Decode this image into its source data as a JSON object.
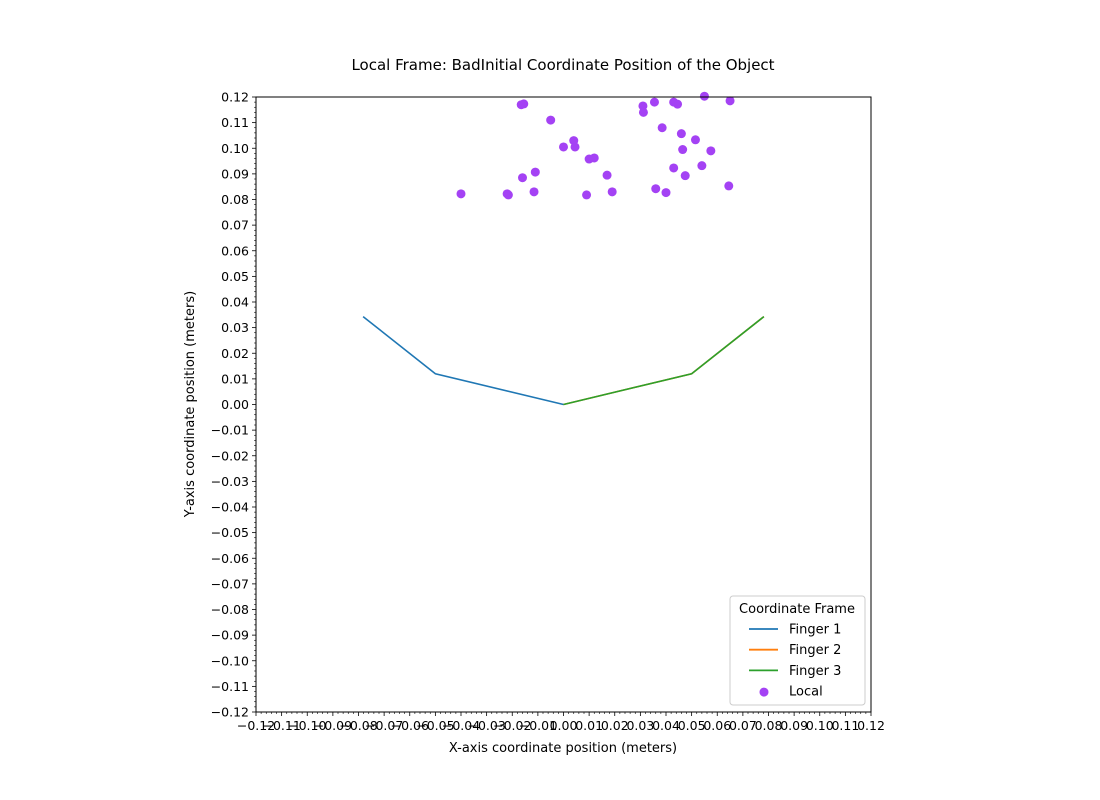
{
  "chart_data": {
    "type": "line+scatter",
    "title": "Local Frame: BadInitial Coordinate Position of the Object",
    "xlabel": "X-axis coordinate position (meters)",
    "ylabel": "Y-axis coordinate position (meters)",
    "xlim": [
      -0.12,
      0.12
    ],
    "ylim": [
      -0.12,
      0.12
    ],
    "major_step": 0.01,
    "minor_step": 0.002,
    "grid": false,
    "legend": {
      "title": "Coordinate Frame",
      "placement": "lower-right"
    },
    "series": [
      {
        "name": "Finger 1",
        "kind": "line",
        "color": "#1f77b4",
        "points": [
          [
            -0.0782,
            0.0343
          ],
          [
            -0.05,
            0.012
          ],
          [
            0.0,
            0.0
          ]
        ]
      },
      {
        "name": "Finger 2",
        "kind": "line",
        "color": "#ff7f0e",
        "points": [
          [
            0.0,
            0.0
          ],
          [
            0.05,
            0.012
          ],
          [
            0.0782,
            0.0343
          ]
        ]
      },
      {
        "name": "Finger 3",
        "kind": "line",
        "color": "#2ca02c",
        "points": [
          [
            0.0,
            0.0
          ],
          [
            0.05,
            0.012
          ],
          [
            0.0782,
            0.0343
          ]
        ]
      },
      {
        "name": "Local",
        "kind": "scatter",
        "color": "#a442f4",
        "points": [
          [
            -0.04,
            0.0822
          ],
          [
            -0.022,
            0.0822
          ],
          [
            -0.0215,
            0.0818
          ],
          [
            -0.0115,
            0.083
          ],
          [
            -0.016,
            0.0885
          ],
          [
            -0.011,
            0.0907
          ],
          [
            -0.0165,
            0.117
          ],
          [
            -0.0155,
            0.1173
          ],
          [
            -0.005,
            0.111
          ],
          [
            0.0,
            0.1005
          ],
          [
            0.004,
            0.103
          ],
          [
            0.0045,
            0.1005
          ],
          [
            0.01,
            0.0958
          ],
          [
            0.012,
            0.0962
          ],
          [
            0.009,
            0.0818
          ],
          [
            0.017,
            0.0895
          ],
          [
            0.019,
            0.083
          ],
          [
            0.031,
            0.1165
          ],
          [
            0.0312,
            0.114
          ],
          [
            0.0355,
            0.118
          ],
          [
            0.0385,
            0.108
          ],
          [
            0.043,
            0.118
          ],
          [
            0.0445,
            0.1172
          ],
          [
            0.046,
            0.1057
          ],
          [
            0.0465,
            0.0995
          ],
          [
            0.0475,
            0.0893
          ],
          [
            0.0515,
            0.1033
          ],
          [
            0.043,
            0.0923
          ],
          [
            0.036,
            0.0842
          ],
          [
            0.04,
            0.0827
          ],
          [
            0.054,
            0.0932
          ],
          [
            0.055,
            0.1203
          ],
          [
            0.0575,
            0.099
          ],
          [
            0.0645,
            0.0853
          ],
          [
            0.065,
            0.1185
          ]
        ]
      }
    ]
  }
}
